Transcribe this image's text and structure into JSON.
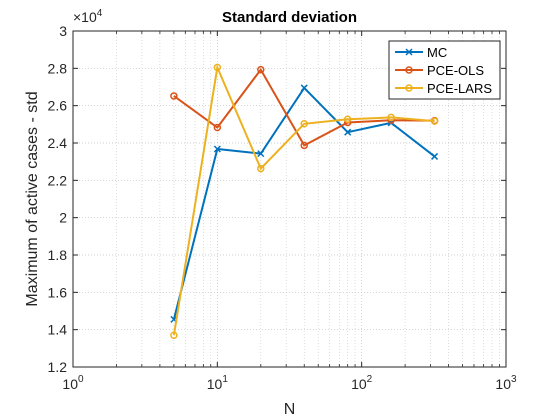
{
  "chart_data": {
    "type": "line",
    "title": "Standard deviation",
    "xlabel": "N",
    "ylabel": "Maximum of active cases - std",
    "xscale": "log",
    "xlim": [
      1,
      1000
    ],
    "ylim": [
      12000,
      30000
    ],
    "y_exponent_label": "×10",
    "y_exponent_power": "4",
    "x_ticks": [
      1,
      10,
      100,
      1000
    ],
    "x_tick_labels": [
      {
        "base": "10",
        "exp": "0"
      },
      {
        "base": "10",
        "exp": "1"
      },
      {
        "base": "10",
        "exp": "2"
      },
      {
        "base": "10",
        "exp": "3"
      }
    ],
    "y_ticks": [
      12000,
      14000,
      16000,
      18000,
      20000,
      22000,
      24000,
      26000,
      28000,
      30000
    ],
    "y_tick_labels": [
      "1.2",
      "1.4",
      "1.6",
      "1.8",
      "2",
      "2.2",
      "2.4",
      "2.6",
      "2.8",
      "3"
    ],
    "grid": true,
    "minor_grid": true,
    "legend_position": "top-right",
    "series": [
      {
        "name": "MC",
        "color": "#0072BD",
        "marker": "x",
        "x": [
          5,
          10,
          20,
          40,
          80,
          160,
          320
        ],
        "y": [
          14550,
          23680,
          23430,
          26950,
          24580,
          25080,
          23280
        ]
      },
      {
        "name": "PCE-OLS",
        "color": "#D95319",
        "marker": "o",
        "x": [
          5,
          10,
          20,
          40,
          80,
          160,
          320
        ],
        "y": [
          26520,
          24830,
          27930,
          23870,
          25100,
          25220,
          25200
        ]
      },
      {
        "name": "PCE-LARS",
        "color": "#EDB120",
        "marker": "o",
        "x": [
          5,
          10,
          20,
          40,
          80,
          160,
          320
        ],
        "y": [
          13700,
          28050,
          22630,
          25030,
          25270,
          25370,
          25170
        ]
      }
    ]
  }
}
